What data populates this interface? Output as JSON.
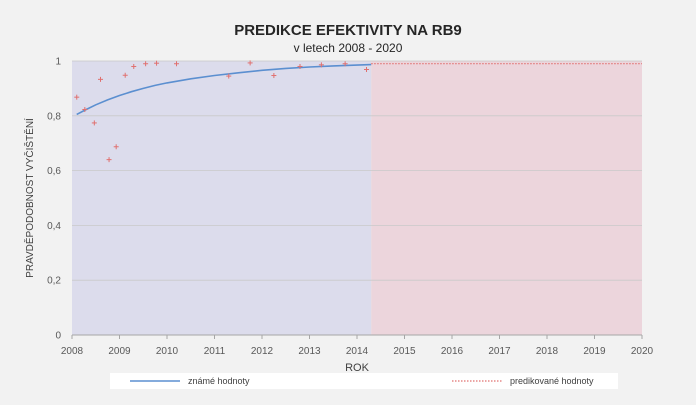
{
  "chart_data": {
    "type": "line",
    "title": "PREDIKCE EFEKTIVITY NA RB9",
    "subtitle": "v letech 2008 - 2020",
    "xlabel": "ROK",
    "ylabel": "PRAVDĚPODOBNOST VYČIŠTĚNÍ",
    "xlim": [
      2008,
      2020
    ],
    "ylim": [
      0,
      1
    ],
    "x_ticks": [
      2008,
      2009,
      2010,
      2011,
      2012,
      2013,
      2014,
      2015,
      2016,
      2017,
      2018,
      2019,
      2020
    ],
    "x_tick_labels": [
      "2008",
      "2009",
      "2010",
      "2011",
      "2012",
      "2013",
      "2014",
      "2015",
      "2016",
      "2017",
      "2018",
      "2019",
      "2020"
    ],
    "y_ticks": [
      0,
      0.2,
      0.4,
      0.6,
      0.8,
      1
    ],
    "y_tick_labels": [
      "0",
      "0,2",
      "0,4",
      "0,6",
      "0,8",
      "1"
    ],
    "grid": "horizontal",
    "legend_position": "bottom",
    "known_region": [
      2008,
      2014.3
    ],
    "predicted_region": [
      2014.3,
      2020
    ],
    "colors": {
      "known_region": "#dcdcec",
      "predicted_region": "#ecd5dc",
      "known_line": "#5b8fd0",
      "predicted_line": "#e0706f",
      "points": "#e0706f",
      "grid": "#c9c9c9"
    },
    "series": [
      {
        "name": "známé hodnoty",
        "style": "solid",
        "x": [
          2008.1,
          2008.3,
          2008.5,
          2008.75,
          2009.0,
          2009.25,
          2009.5,
          2009.75,
          2010.0,
          2010.5,
          2011.0,
          2011.5,
          2012.0,
          2012.5,
          2013.0,
          2013.5,
          2014.0,
          2014.3
        ],
        "y": [
          0.805,
          0.823,
          0.84,
          0.858,
          0.874,
          0.888,
          0.9,
          0.911,
          0.92,
          0.935,
          0.947,
          0.957,
          0.966,
          0.973,
          0.978,
          0.982,
          0.985,
          0.987
        ]
      },
      {
        "name": "predikované hodnoty",
        "style": "dotted",
        "x": [
          2014.3,
          2020
        ],
        "y": [
          0.99,
          0.99
        ]
      },
      {
        "name": "",
        "type": "scatter",
        "marker": "+",
        "x": [
          2008.1,
          2008.27,
          2008.47,
          2008.6,
          2008.78,
          2008.93,
          2009.12,
          2009.3,
          2009.55,
          2009.78,
          2010.2,
          2011.3,
          2011.75,
          2012.25,
          2012.8,
          2013.25,
          2013.75,
          2014.2
        ],
        "y": [
          0.868,
          0.823,
          0.774,
          0.933,
          0.64,
          0.687,
          0.948,
          0.98,
          0.99,
          0.992,
          0.99,
          0.945,
          0.993,
          0.947,
          0.98,
          0.986,
          0.99,
          0.969
        ]
      }
    ]
  }
}
